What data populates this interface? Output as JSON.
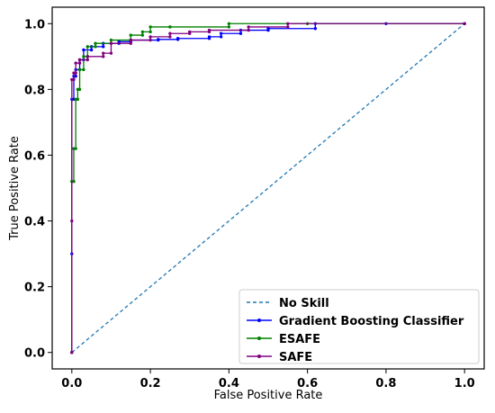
{
  "chart_data": {
    "type": "line",
    "title": "",
    "xlabel": "False Positive Rate",
    "ylabel": "True Positive Rate",
    "xlim": [
      -0.05,
      1.05
    ],
    "ylim": [
      -0.05,
      1.05
    ],
    "xticks": [
      0.0,
      0.2,
      0.4,
      0.6,
      0.8,
      1.0
    ],
    "yticks": [
      0.0,
      0.2,
      0.4,
      0.6,
      0.8,
      1.0
    ],
    "xtick_labels": [
      "0.0",
      "0.2",
      "0.4",
      "0.6",
      "0.8",
      "1.0"
    ],
    "ytick_labels": [
      "0.0",
      "0.2",
      "0.4",
      "0.6",
      "0.8",
      "1.0"
    ],
    "grid": false,
    "legend_position": "lower-right",
    "series": [
      {
        "name": "No Skill",
        "color": "#1f77b4",
        "style": "dashed",
        "marker": "none",
        "x": [
          0.0,
          1.0
        ],
        "y": [
          0.0,
          1.0
        ]
      },
      {
        "name": "Gradient Boosting Classifier",
        "color": "#0000ff",
        "style": "solid",
        "marker": "dot",
        "x": [
          0.0,
          0.0,
          0.0,
          0.005,
          0.005,
          0.01,
          0.01,
          0.02,
          0.02,
          0.03,
          0.03,
          0.05,
          0.05,
          0.08,
          0.08,
          0.12,
          0.12,
          0.15,
          0.15,
          0.22,
          0.22,
          0.27,
          0.27,
          0.35,
          0.35,
          0.38,
          0.38,
          0.43,
          0.43,
          0.5,
          0.5,
          0.62,
          0.62,
          0.8,
          1.0
        ],
        "y": [
          0.0,
          0.3,
          0.77,
          0.77,
          0.84,
          0.84,
          0.86,
          0.86,
          0.89,
          0.89,
          0.92,
          0.92,
          0.93,
          0.93,
          0.94,
          0.94,
          0.945,
          0.945,
          0.95,
          0.95,
          0.952,
          0.952,
          0.955,
          0.955,
          0.96,
          0.96,
          0.97,
          0.97,
          0.98,
          0.98,
          0.985,
          0.985,
          1.0,
          1.0,
          1.0
        ]
      },
      {
        "name": "ESAFE",
        "color": "#008000",
        "style": "solid",
        "marker": "dot",
        "x": [
          0.0,
          0.0,
          0.005,
          0.005,
          0.01,
          0.01,
          0.015,
          0.015,
          0.02,
          0.02,
          0.03,
          0.03,
          0.04,
          0.04,
          0.06,
          0.06,
          0.1,
          0.1,
          0.15,
          0.15,
          0.18,
          0.18,
          0.2,
          0.2,
          0.25,
          0.25,
          0.4,
          0.4,
          0.6,
          1.0
        ],
        "y": [
          0.0,
          0.52,
          0.52,
          0.62,
          0.62,
          0.77,
          0.77,
          0.8,
          0.8,
          0.86,
          0.86,
          0.9,
          0.9,
          0.93,
          0.93,
          0.94,
          0.94,
          0.95,
          0.95,
          0.965,
          0.965,
          0.975,
          0.975,
          0.99,
          0.99,
          0.99,
          0.99,
          1.0,
          1.0,
          1.0
        ]
      },
      {
        "name": "SAFE",
        "color": "#800080",
        "style": "solid",
        "marker": "dot",
        "x": [
          0.0,
          0.0,
          0.0,
          0.005,
          0.005,
          0.01,
          0.01,
          0.02,
          0.02,
          0.04,
          0.04,
          0.08,
          0.08,
          0.1,
          0.1,
          0.15,
          0.15,
          0.2,
          0.2,
          0.25,
          0.25,
          0.3,
          0.3,
          0.35,
          0.35,
          0.45,
          0.45,
          0.55,
          0.55,
          1.0
        ],
        "y": [
          0.0,
          0.4,
          0.83,
          0.83,
          0.85,
          0.85,
          0.88,
          0.88,
          0.89,
          0.89,
          0.9,
          0.9,
          0.91,
          0.91,
          0.94,
          0.94,
          0.95,
          0.95,
          0.96,
          0.96,
          0.97,
          0.97,
          0.975,
          0.975,
          0.98,
          0.98,
          0.99,
          0.99,
          1.0,
          1.0
        ]
      }
    ]
  }
}
